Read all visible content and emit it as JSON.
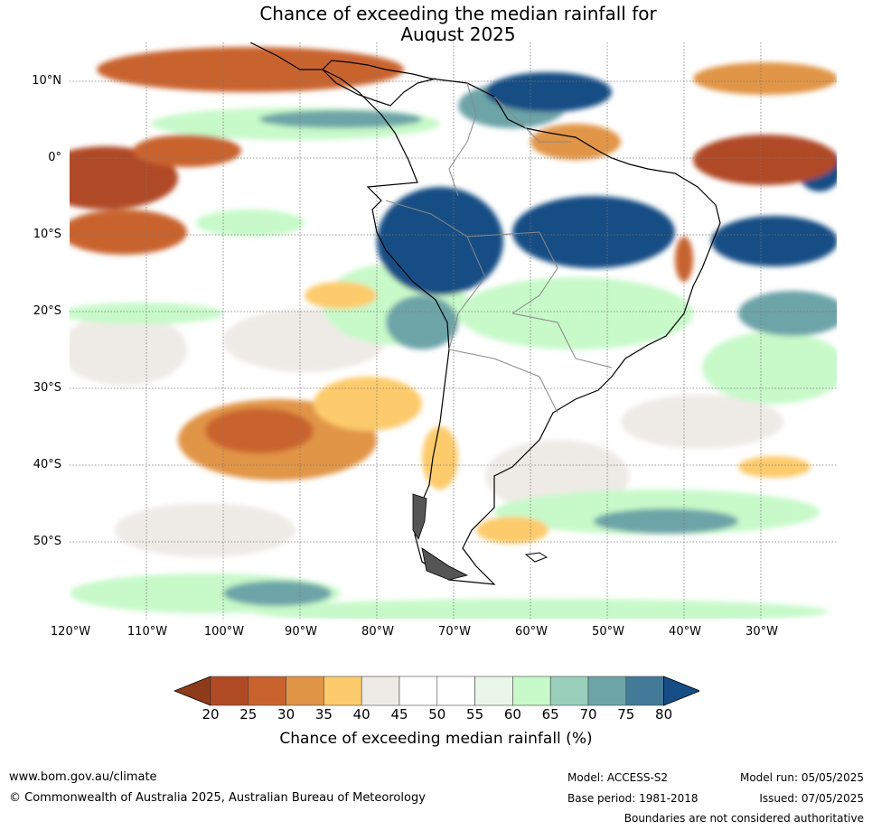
{
  "title": {
    "line1": "Chance of exceeding the median rainfall for",
    "line2": "August 2025"
  },
  "map": {
    "lat_labels": [
      "10°N",
      "0°",
      "10°S",
      "20°S",
      "30°S",
      "40°S",
      "50°S"
    ],
    "lon_labels": [
      "120°W",
      "110°W",
      "100°W",
      "90°W",
      "80°W",
      "70°W",
      "60°W",
      "50°W",
      "40°W",
      "30°W"
    ]
  },
  "colorbar": {
    "ticks": [
      "20",
      "25",
      "30",
      "35",
      "40",
      "45",
      "50",
      "55",
      "60",
      "65",
      "70",
      "75",
      "80"
    ],
    "colors": [
      "#8e3b1c",
      "#b04a25",
      "#c9632e",
      "#e19546",
      "#fdcb6c",
      "#eeebe6",
      "#ffffff",
      "#ffffff",
      "#eaf6ea",
      "#c7f9c9",
      "#98cfbb",
      "#6da4a8",
      "#427a98",
      "#154d84"
    ],
    "title": "Chance of exceeding median rainfall (%)"
  },
  "footer": {
    "website": "www.bom.gov.au/climate",
    "copyright": "© Commonwealth of Australia 2025, Australian Bureau of Meteorology",
    "model": "Model: ACCESS-S2",
    "base_period": "Base period: 1981-2018",
    "model_run": "Model run: 05/05/2025",
    "issued": "Issued: 07/05/2025",
    "disclaimer": "Boundaries are not considered authoritative"
  }
}
